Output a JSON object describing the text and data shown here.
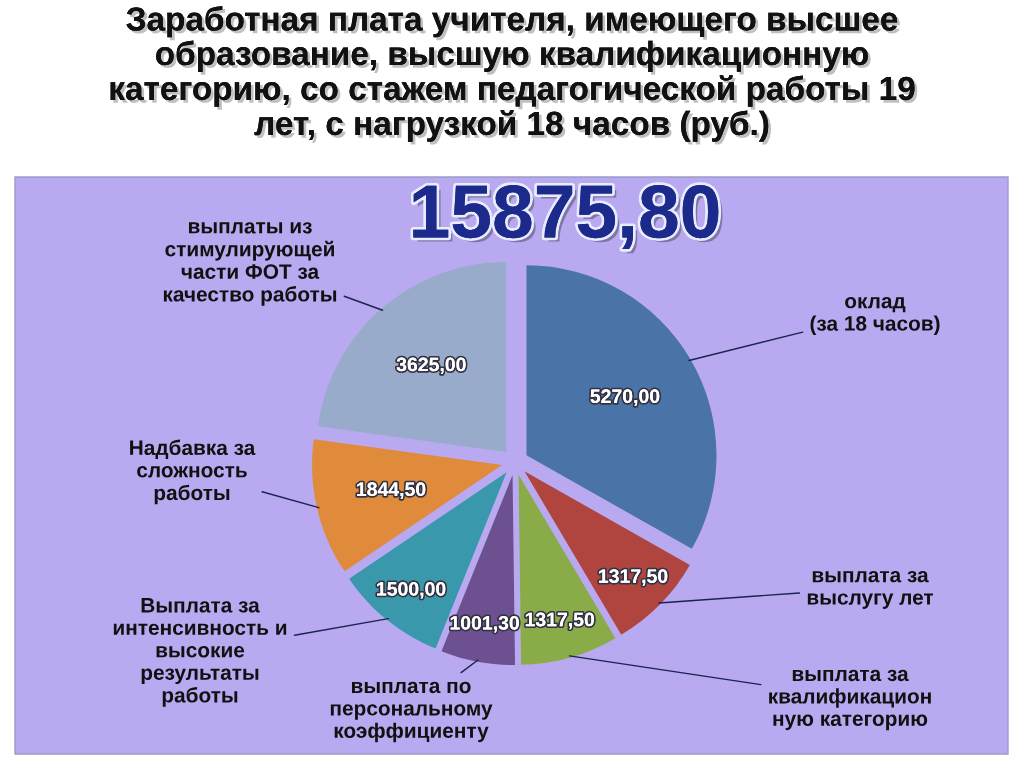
{
  "chart_data": {
    "type": "pie",
    "title": "Заработная плата учителя, имеющего высшее\nобразование, высшую квалификационную\nкатегорию, со стажем педагогической работы 19\nлет, с нагрузкой 18 часов (руб.)",
    "categories": [
      "оклад\n(за 18 часов)",
      "выплата за\nвыслугу лет",
      "выплата за\nквалификацион\nную категорию",
      "выплата по\nперсональному\nкоэффициенту",
      "Выплата за\nинтенсивность и\nвысокие\nрезультаты\nработы",
      "Надбавка за\nсложность\nработы",
      "выплаты из\nстимулирующей\nчасти ФОТ за\nкачество работы"
    ],
    "values": [
      5270.0,
      1317.5,
      1317.5,
      1001.3,
      1500.0,
      1844.5,
      3625.0
    ],
    "value_labels": [
      "5270,00",
      "1317,50",
      "1317,50",
      "1001,30",
      "1500,00",
      "1844,50",
      "3625,00"
    ],
    "colors": [
      "#4a74a8",
      "#b04540",
      "#8aac48",
      "#6c5090",
      "#3a98ac",
      "#e08a3c",
      "#98abcb"
    ],
    "annotations": [
      "15875,80"
    ]
  }
}
